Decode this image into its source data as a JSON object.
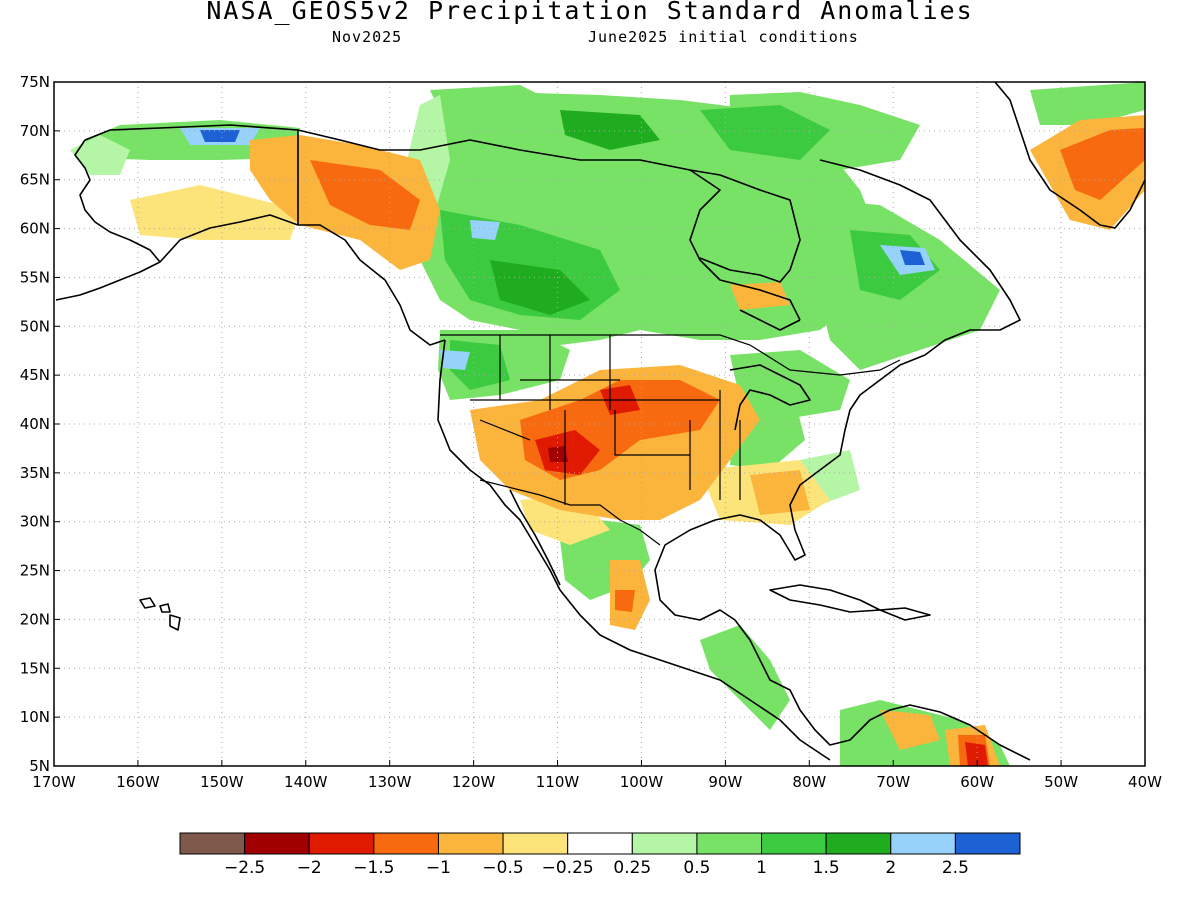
{
  "title": "NASA_GEOS5v2 Precipitation Standard Anomalies",
  "subtitle_left": "Nov2025",
  "subtitle_right": "June2025 initial conditions",
  "map": {
    "region": "North America",
    "projection": "latitude-longitude",
    "lon_range": [
      -170,
      -40
    ],
    "lat_range": [
      5,
      75
    ],
    "grid": "dotted",
    "lat_tick_labels": [
      "75N",
      "70N",
      "65N",
      "60N",
      "55N",
      "50N",
      "45N",
      "40N",
      "35N",
      "30N",
      "25N",
      "20N",
      "15N",
      "10N",
      "5N"
    ],
    "lon_tick_labels": [
      "170W",
      "160W",
      "150W",
      "140W",
      "130W",
      "120W",
      "110W",
      "100W",
      "90W",
      "80W",
      "70W",
      "60W",
      "50W",
      "40W"
    ]
  },
  "colorbar": {
    "labels": [
      "-2.5",
      "-2",
      "-1.5",
      "-1",
      "-0.5",
      "-0.25",
      "0.25",
      "0.5",
      "1",
      "1.5",
      "2",
      "2.5"
    ],
    "colors": [
      "#7f5a4c",
      "#a00000",
      "#e01a00",
      "#f86a10",
      "#fbb43c",
      "#fde47a",
      "#ffffff",
      "#b5f6a6",
      "#78e266",
      "#3cca40",
      "#1fac1e",
      "#96d2fa",
      "#1d62d4"
    ]
  }
}
